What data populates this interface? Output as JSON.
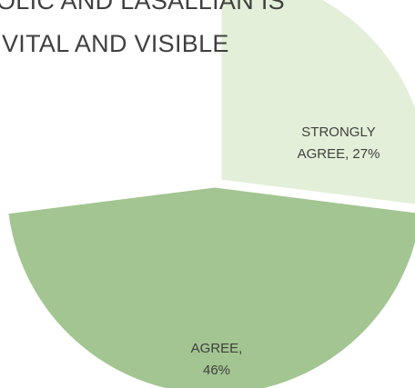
{
  "chart_data": {
    "type": "pie",
    "title_lines": [
      "OLIC AND LASALLIAN IS",
      "VITAL AND VISIBLE"
    ],
    "slices": [
      {
        "name": "STRONGLY AGREE",
        "value": 27,
        "label_lines": [
          "STRONGLY",
          "AGREE, 27%"
        ],
        "color": "#e3efd9"
      },
      {
        "name": "AGREE",
        "value": 46,
        "label_lines": [
          "AGREE,",
          "46%"
        ],
        "color": "#a3c591"
      }
    ],
    "start_angle_deg": 0,
    "legend": "none"
  }
}
